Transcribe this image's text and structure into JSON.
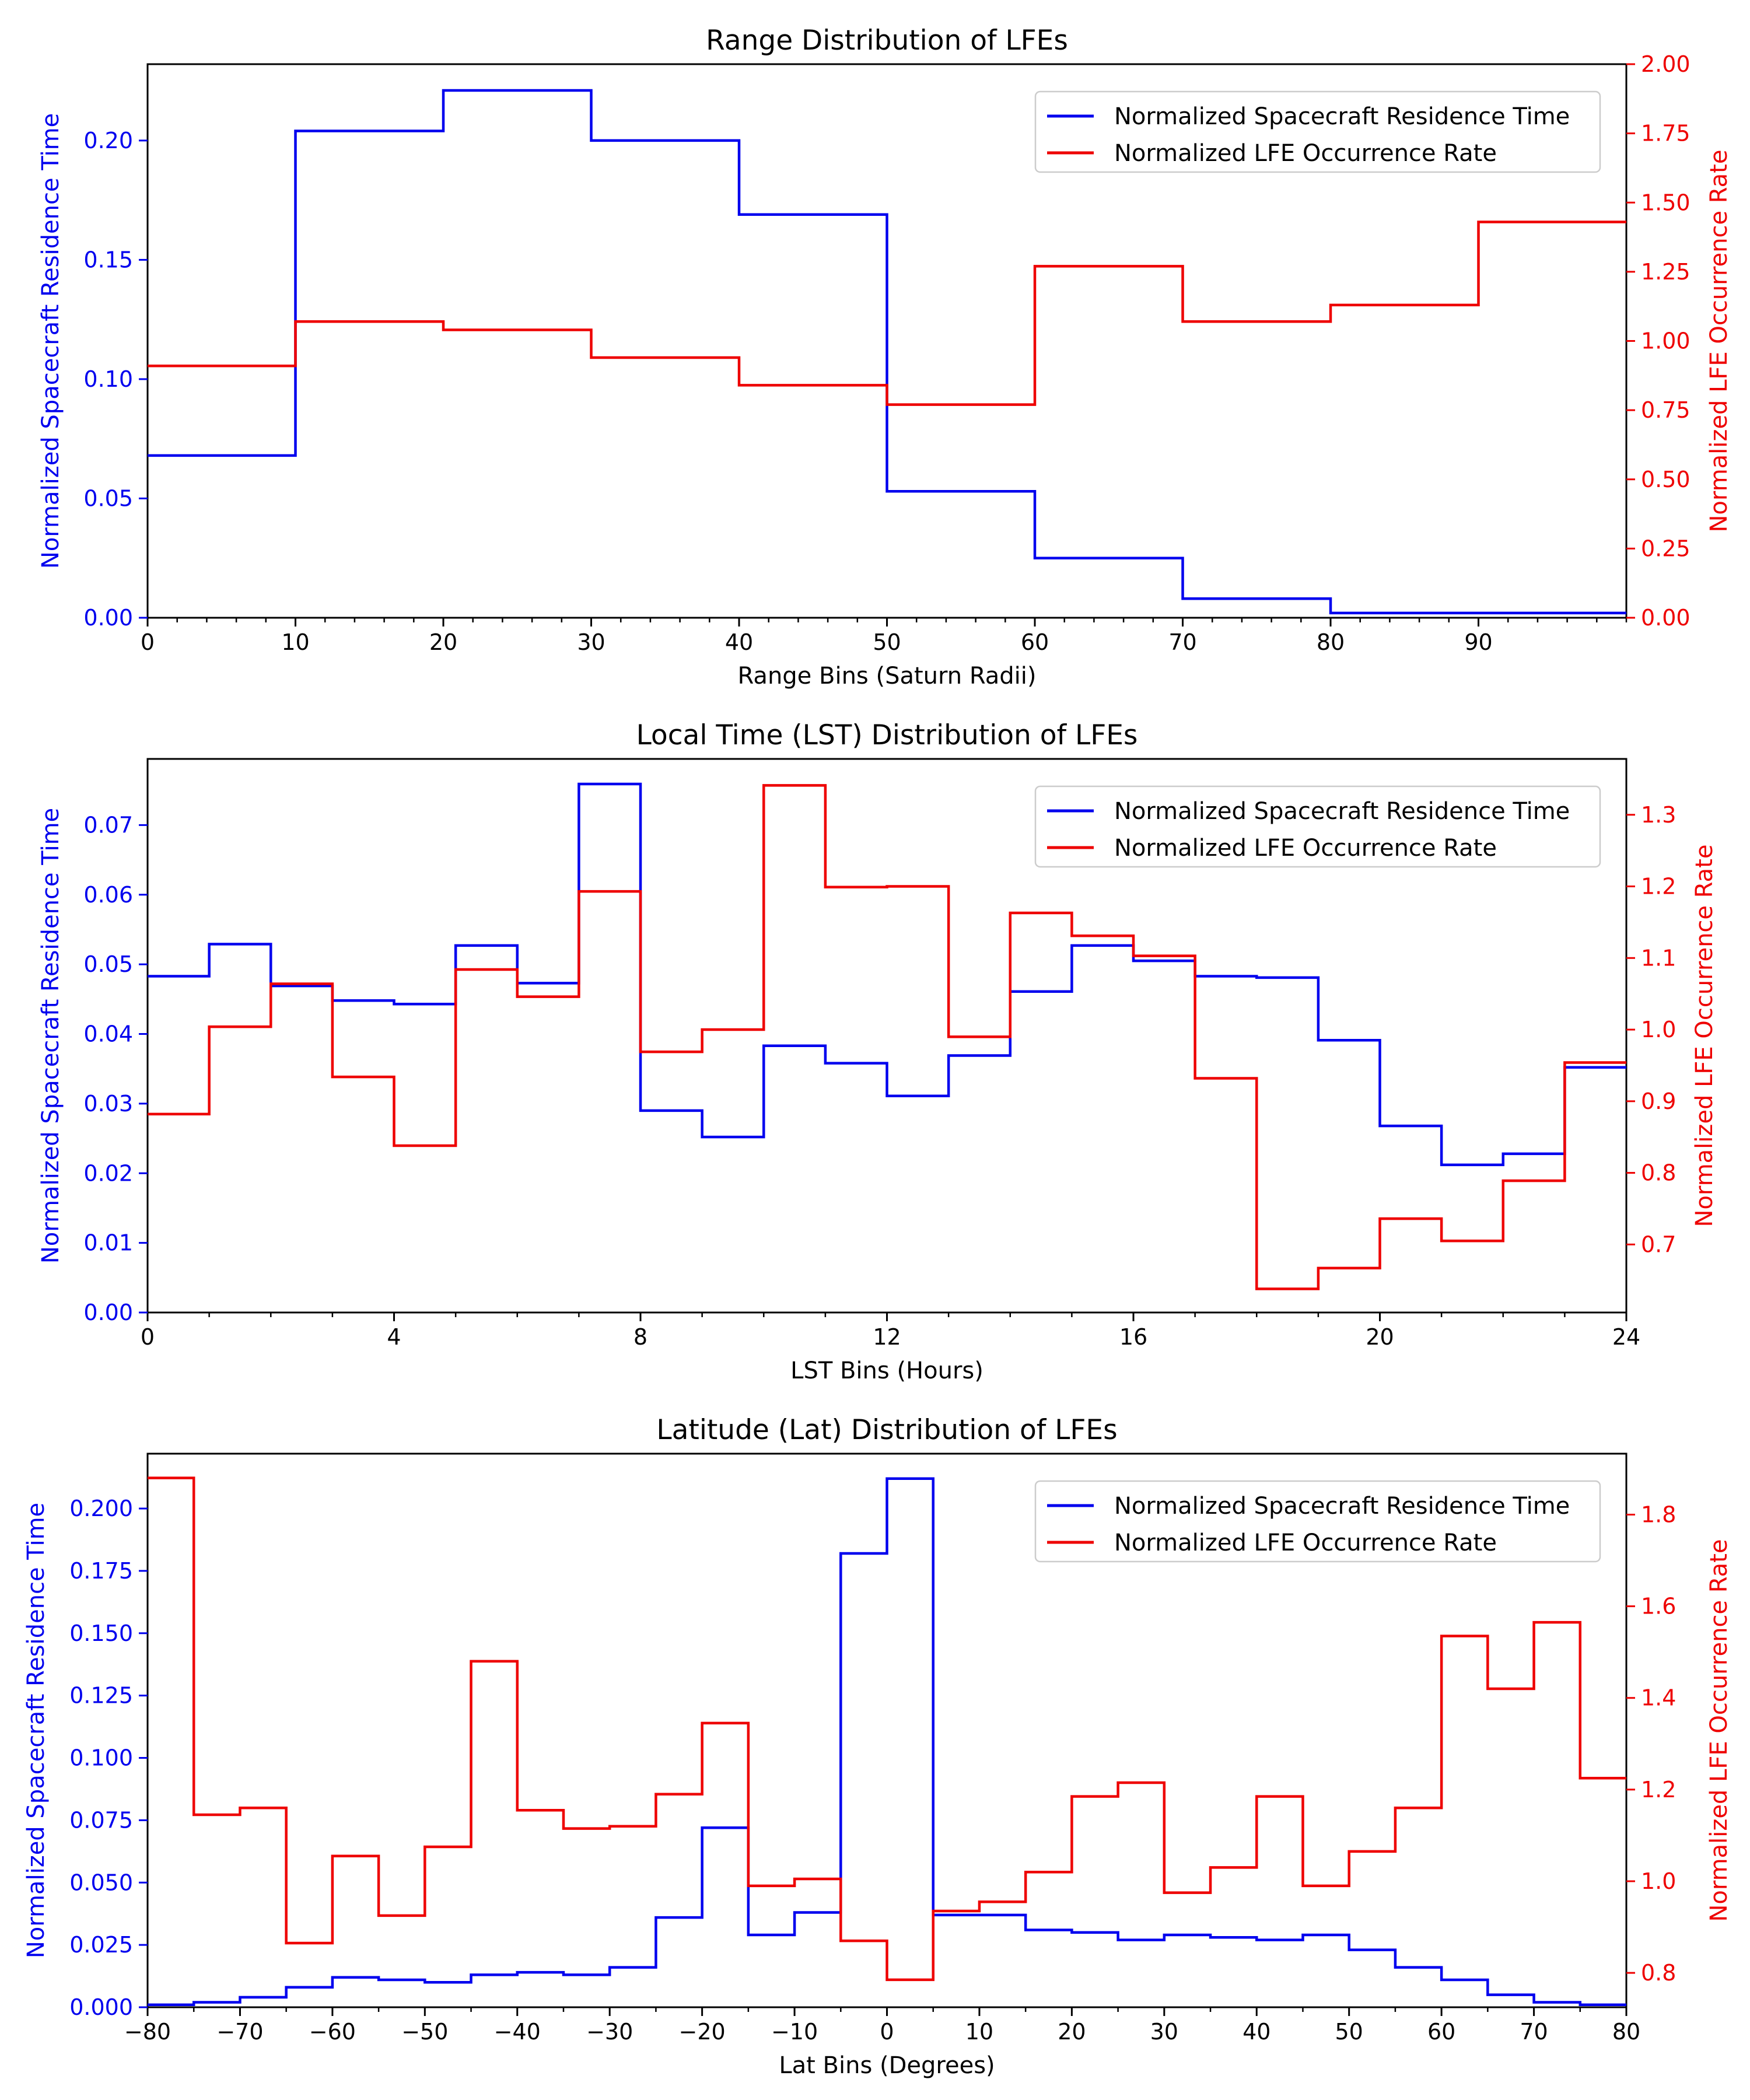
{
  "chart_data": [
    {
      "type": "line",
      "subtype": "step",
      "title": "Range Distribution of LFEs",
      "xlabel": "Range Bins (Saturn Radii)",
      "ylabel_left": "Normalized Spacecraft Residence Time",
      "ylabel_right": "Normalized LFE Occurrence Rate",
      "xlim": [
        0,
        100
      ],
      "ylim_left": [
        0,
        0.232
      ],
      "ylim_right": [
        0,
        2.0
      ],
      "x_ticks": [
        0,
        10,
        20,
        30,
        40,
        50,
        60,
        70,
        80,
        90
      ],
      "x_tick_labels": [
        "0",
        "10",
        "20",
        "30",
        "40",
        "50",
        "60",
        "70",
        "80",
        "90"
      ],
      "x_minor_step": 2,
      "y_left_ticks": [
        0.0,
        0.05,
        0.1,
        0.15,
        0.2
      ],
      "y_left_tick_labels": [
        "0.00",
        "0.05",
        "0.10",
        "0.15",
        "0.20"
      ],
      "y_right_ticks": [
        0.0,
        0.25,
        0.5,
        0.75,
        1.0,
        1.25,
        1.5,
        1.75,
        2.0
      ],
      "y_right_tick_labels": [
        "0.00",
        "0.25",
        "0.50",
        "0.75",
        "1.00",
        "1.25",
        "1.50",
        "1.75",
        "2.00"
      ],
      "legend_position": "upper right",
      "bin_edges": [
        0,
        10,
        20,
        30,
        40,
        50,
        60,
        70,
        80,
        90,
        100
      ],
      "series": [
        {
          "name": "Normalized Spacecraft Residence Time",
          "axis": "left",
          "color": "#0000ee",
          "values": [
            0.068,
            0.204,
            0.221,
            0.2,
            0.169,
            0.053,
            0.025,
            0.008,
            0.002,
            0.002
          ]
        },
        {
          "name": "Normalized LFE Occurrence Rate",
          "axis": "right",
          "color": "#ee0000",
          "values": [
            0.91,
            1.07,
            1.04,
            0.94,
            0.84,
            0.77,
            1.27,
            1.07,
            1.13,
            1.43
          ]
        }
      ]
    },
    {
      "type": "line",
      "subtype": "step",
      "title": "Local Time (LST) Distribution of LFEs",
      "xlabel": "LST Bins (Hours)",
      "ylabel_left": "Normalized Spacecraft Residence Time",
      "ylabel_right": "Normalized LFE Occurrence Rate",
      "xlim": [
        0,
        24
      ],
      "ylim_left": [
        0,
        0.0795
      ],
      "ylim_right": [
        0.605,
        1.378
      ],
      "x_ticks": [
        0,
        4,
        8,
        12,
        16,
        20,
        24
      ],
      "x_tick_labels": [
        "0",
        "4",
        "8",
        "12",
        "16",
        "20",
        "24"
      ],
      "x_minor_step": 1,
      "y_left_ticks": [
        0.0,
        0.01,
        0.02,
        0.03,
        0.04,
        0.05,
        0.06,
        0.07
      ],
      "y_left_tick_labels": [
        "0.00",
        "0.01",
        "0.02",
        "0.03",
        "0.04",
        "0.05",
        "0.06",
        "0.07"
      ],
      "y_right_ticks": [
        0.7,
        0.8,
        0.9,
        1.0,
        1.1,
        1.2,
        1.3
      ],
      "y_right_tick_labels": [
        "0.7",
        "0.8",
        "0.9",
        "1.0",
        "1.1",
        "1.2",
        "1.3"
      ],
      "legend_position": "upper right",
      "bin_edges": [
        0,
        1,
        2,
        3,
        4,
        5,
        6,
        7,
        8,
        9,
        10,
        11,
        12,
        13,
        14,
        15,
        16,
        17,
        18,
        19,
        20,
        21,
        22,
        23,
        24
      ],
      "series": [
        {
          "name": "Normalized Spacecraft Residence Time",
          "axis": "left",
          "color": "#0000ee",
          "values": [
            0.0483,
            0.0529,
            0.0469,
            0.0448,
            0.0443,
            0.0527,
            0.0473,
            0.0759,
            0.029,
            0.0252,
            0.0383,
            0.0358,
            0.0311,
            0.0369,
            0.0461,
            0.0527,
            0.0505,
            0.0483,
            0.0481,
            0.0391,
            0.0268,
            0.0212,
            0.0228,
            0.0352
          ]
        },
        {
          "name": "Normalized LFE Occurrence Rate",
          "axis": "right",
          "color": "#ee0000",
          "values": [
            0.882,
            1.004,
            1.064,
            0.934,
            0.838,
            1.084,
            1.046,
            1.193,
            0.969,
            1.0,
            1.341,
            1.199,
            1.2,
            0.99,
            1.163,
            1.131,
            1.103,
            0.932,
            0.638,
            0.667,
            0.736,
            0.705,
            0.789,
            0.954
          ]
        }
      ]
    },
    {
      "type": "line",
      "subtype": "step",
      "title": "Latitude (Lat) Distribution of LFEs",
      "xlabel": "Lat Bins (Degrees)",
      "ylabel_left": "Normalized Spacecraft Residence Time",
      "ylabel_right": "Normalized LFE Occurrence Rate",
      "xlim": [
        -80,
        80
      ],
      "ylim_left": [
        0,
        0.222
      ],
      "ylim_right": [
        0.725,
        1.933
      ],
      "x_ticks": [
        -80,
        -70,
        -60,
        -50,
        -40,
        -30,
        -20,
        -10,
        0,
        10,
        20,
        30,
        40,
        50,
        60,
        70,
        80
      ],
      "x_tick_labels": [
        "−80",
        "−70",
        "−60",
        "−50",
        "−40",
        "−30",
        "−20",
        "−10",
        "0",
        "10",
        "20",
        "30",
        "40",
        "50",
        "60",
        "70",
        "80"
      ],
      "x_minor_step": 5,
      "y_left_ticks": [
        0.0,
        0.025,
        0.05,
        0.075,
        0.1,
        0.125,
        0.15,
        0.175,
        0.2
      ],
      "y_left_tick_labels": [
        "0.000",
        "0.025",
        "0.050",
        "0.075",
        "0.100",
        "0.125",
        "0.150",
        "0.175",
        "0.200"
      ],
      "y_right_ticks": [
        0.8,
        1.0,
        1.2,
        1.4,
        1.6,
        1.8
      ],
      "y_right_tick_labels": [
        "0.8",
        "1.0",
        "1.2",
        "1.4",
        "1.6",
        "1.8"
      ],
      "legend_position": "upper right",
      "bin_edges": [
        -80,
        -75,
        -70,
        -65,
        -60,
        -55,
        -50,
        -45,
        -40,
        -35,
        -30,
        -25,
        -20,
        -15,
        -10,
        -5,
        0,
        5,
        10,
        15,
        20,
        25,
        30,
        35,
        40,
        45,
        50,
        55,
        60,
        65,
        70,
        75,
        80
      ],
      "series": [
        {
          "name": "Normalized Spacecraft Residence Time",
          "axis": "left",
          "color": "#0000ee",
          "values": [
            0.001,
            0.002,
            0.004,
            0.008,
            0.012,
            0.011,
            0.01,
            0.013,
            0.014,
            0.013,
            0.016,
            0.036,
            0.072,
            0.029,
            0.038,
            0.182,
            0.212,
            0.037,
            0.037,
            0.031,
            0.03,
            0.027,
            0.029,
            0.028,
            0.027,
            0.029,
            0.023,
            0.016,
            0.011,
            0.005,
            0.002,
            0.001
          ]
        },
        {
          "name": "Normalized LFE Occurrence Rate",
          "axis": "right",
          "color": "#ee0000",
          "values": [
            1.88,
            1.145,
            1.16,
            0.865,
            1.055,
            0.925,
            1.075,
            1.48,
            1.155,
            1.115,
            1.12,
            1.19,
            1.345,
            0.99,
            1.005,
            0.87,
            0.785,
            0.935,
            0.955,
            1.02,
            1.185,
            1.215,
            0.975,
            1.03,
            1.185,
            0.99,
            1.065,
            1.16,
            1.535,
            1.42,
            1.565,
            1.225
          ]
        }
      ]
    }
  ]
}
